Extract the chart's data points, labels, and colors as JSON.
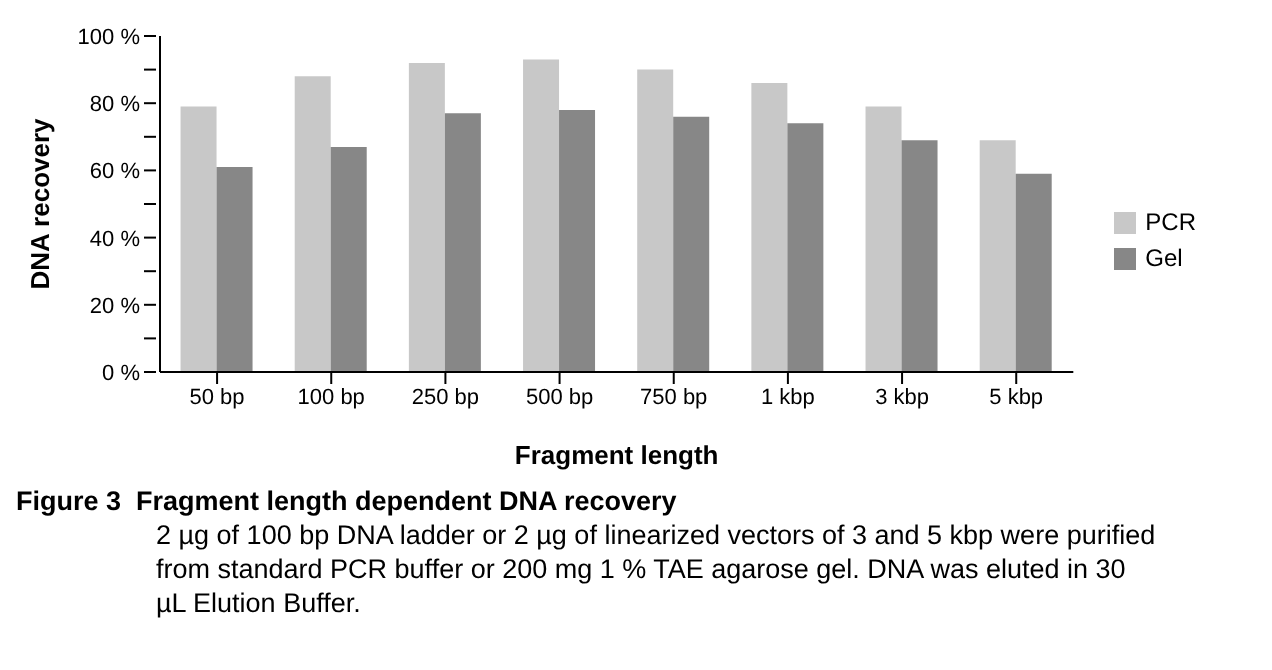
{
  "chart_data": {
    "type": "bar",
    "title": "Figure 3  Fragment length dependent DNA recovery",
    "annotations": [
      "2 µg of 100 bp DNA ladder or 2 µg of linearized vectors of 3 and 5 kbp were purified from standard PCR buffer or 200 mg 1 % TAE agarose gel. DNA was eluted in 30 µL Elution Buffer."
    ],
    "xlabel": "Fragment length",
    "ylabel": "DNA recovery",
    "categories": [
      "50 bp",
      "100 bp",
      "250 bp",
      "500 bp",
      "750 bp",
      "1 kbp",
      "3 kbp",
      "5 kbp"
    ],
    "series": [
      {
        "name": "PCR",
        "color": "#c8c8c8",
        "values": [
          79,
          88,
          92,
          93,
          90,
          86,
          79,
          69
        ]
      },
      {
        "name": "Gel",
        "color": "#878787",
        "values": [
          61,
          67,
          77,
          78,
          76,
          74,
          69,
          59
        ]
      }
    ],
    "ylim": [
      0,
      100
    ],
    "yticks": [
      {
        "value": 0,
        "label": "0 %"
      },
      {
        "value": 10,
        "label": null
      },
      {
        "value": 20,
        "label": "20 %"
      },
      {
        "value": 30,
        "label": null
      },
      {
        "value": 40,
        "label": "40 %"
      },
      {
        "value": 50,
        "label": null
      },
      {
        "value": 60,
        "label": "60 %"
      },
      {
        "value": 70,
        "label": null
      },
      {
        "value": 80,
        "label": "80 %"
      },
      {
        "value": 90,
        "label": null
      },
      {
        "value": 100,
        "label": "100 %"
      }
    ],
    "grid": false,
    "legend": "right"
  }
}
